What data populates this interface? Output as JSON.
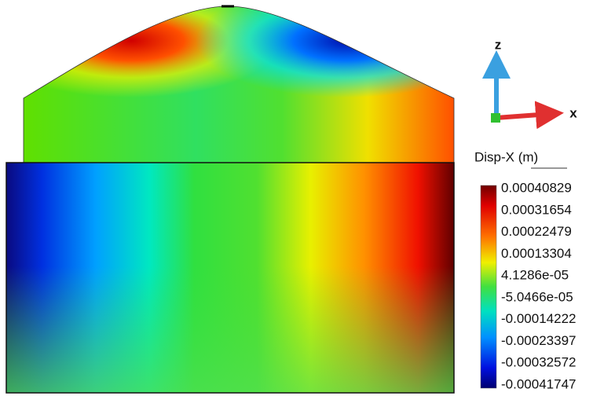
{
  "legend": {
    "title": "Disp-X (m)",
    "labels": [
      "0.00040829",
      "0.00031654",
      "0.00022479",
      "0.00013304",
      "4.1286e-05",
      "-5.0466e-05",
      "-0.00014222",
      "-0.00023397",
      "-0.00032572",
      "-0.00041747"
    ]
  },
  "triad": {
    "z": "z",
    "x": "x"
  }
}
